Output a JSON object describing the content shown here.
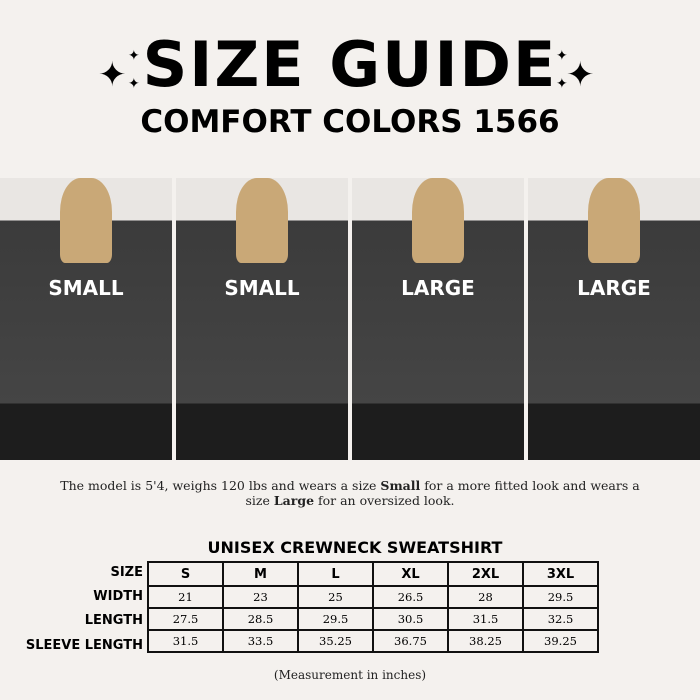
{
  "header": {
    "title": "SIZE GUIDE",
    "subtitle": "COMFORT COLORS 1566"
  },
  "photos": [
    {
      "label": "SMALL"
    },
    {
      "label": "SMALL"
    },
    {
      "label": "LARGE"
    },
    {
      "label": "LARGE"
    }
  ],
  "description": {
    "part1": "The model is 5'4, weighs 120 lbs and wears a size ",
    "bold1": "Small",
    "part2": " for a more fitted look and wears a size ",
    "bold2": "Large",
    "part3": " for an oversized look."
  },
  "table": {
    "title": "UNISEX CREWNECK SWEATSHIRT",
    "row_labels": [
      "SIZE",
      "WIDTH",
      "LENGTH",
      "SLEEVE LENGTH"
    ],
    "sizes": [
      "S",
      "M",
      "L",
      "XL",
      "2XL",
      "3XL"
    ],
    "width": [
      "21",
      "23",
      "25",
      "26.5",
      "28",
      "29.5"
    ],
    "length": [
      "27.5",
      "28.5",
      "29.5",
      "30.5",
      "31.5",
      "32.5"
    ],
    "sleeve_length": [
      "31.5",
      "33.5",
      "35.25",
      "36.75",
      "38.25",
      "39.25"
    ]
  },
  "note": "(Measurement in inches)"
}
